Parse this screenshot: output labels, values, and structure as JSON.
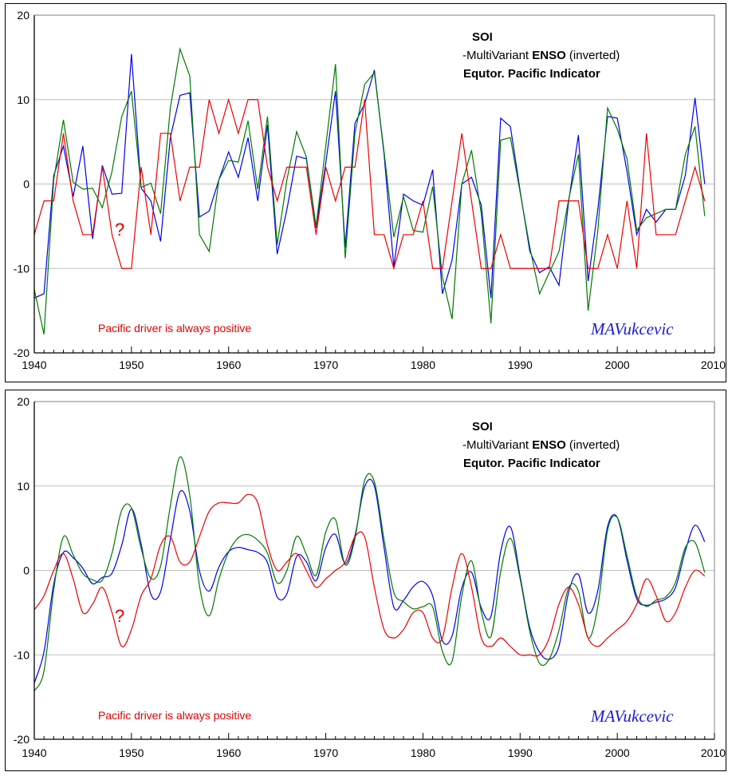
{
  "colors": {
    "soi": "#0000ee",
    "mei": "#007a00",
    "epi": "#ee0000",
    "grid": "#c0c0c0",
    "signature": "#1a1ad8"
  },
  "legend": {
    "soi": "SOI",
    "mei_prefix": "-MultiVariant ",
    "mei_bold": "ENSO",
    "mei_suffix": " (inverted)",
    "epi": "Equtor. Pacific Indicator"
  },
  "annotations": {
    "question_mark": "?",
    "note": "Pacific driver is always positive",
    "signature": "MAVukcevic"
  },
  "chart_data": [
    {
      "type": "line",
      "title": "",
      "variant": "raw",
      "xlabel": "",
      "ylabel": "",
      "xlim": [
        1940,
        2010
      ],
      "ylim": [
        -20,
        20
      ],
      "xticks": [
        1940,
        1950,
        1960,
        1970,
        1980,
        1990,
        2000,
        2010
      ],
      "yticks": [
        20,
        10,
        0,
        -10,
        -20
      ],
      "grid": true,
      "legend_position": "top-right"
    },
    {
      "type": "line",
      "title": "",
      "variant": "smoothed",
      "xlabel": "",
      "ylabel": "",
      "xlim": [
        1940,
        2010
      ],
      "ylim": [
        -20,
        20
      ],
      "xticks": [
        1940,
        1950,
        1960,
        1970,
        1980,
        1990,
        2000,
        2010
      ],
      "yticks": [
        20,
        10,
        0,
        -10,
        -20
      ],
      "grid": true,
      "legend_position": "top-right"
    }
  ],
  "series_data": {
    "x_start": 1940,
    "series": [
      {
        "name": "SOI",
        "key": "soi",
        "values": [
          -13.5,
          -13,
          1,
          4.5,
          -1.5,
          4.5,
          -6.5,
          2.2,
          -1.2,
          -1.1,
          15.4,
          -0.5,
          -2,
          -6.8,
          5.5,
          10.5,
          10.8,
          -3.9,
          -3.2,
          0.5,
          3.8,
          0.8,
          5.5,
          -2,
          7,
          -8.3,
          -3,
          3.3,
          3,
          -5.2,
          2.5,
          11,
          -7.5,
          7.2,
          9.5,
          13.5,
          3.5,
          -9.8,
          -1.2,
          -2,
          -2.5,
          1.7,
          -13,
          -9,
          0,
          0.8,
          -2.5,
          -13.5,
          7.8,
          6.8,
          -0.8,
          -8,
          -10.5,
          -9.8,
          -12,
          -2,
          5.8,
          -11.5,
          -3,
          8,
          7.8,
          1.5,
          -6,
          -3,
          -4.5,
          -3,
          -3,
          1,
          10.2,
          0
        ]
      },
      {
        "name": "-MultiVariant ENSO (inverted)",
        "key": "mei",
        "values": [
          -12.5,
          -17.8,
          0.5,
          7.6,
          0.2,
          -0.6,
          -0.5,
          -2.8,
          1.5,
          8,
          11,
          -0.4,
          0.1,
          -3.5,
          9,
          16,
          12.8,
          -6,
          -8,
          0.5,
          2.8,
          2.6,
          7.5,
          -0.6,
          8,
          -7.2,
          0.5,
          6.2,
          3.2,
          -5,
          4.5,
          14.2,
          -8.8,
          6,
          11.8,
          13.2,
          3.8,
          -6.3,
          -1.5,
          -5.5,
          -5.7,
          -0.3,
          -11,
          -16,
          0,
          4,
          -3.5,
          -16.5,
          5.2,
          5.5,
          -1,
          -7.5,
          -13,
          -10.5,
          -8,
          -1.8,
          3.5,
          -15,
          -5.5,
          9,
          6.5,
          3,
          -5.5,
          -4,
          -3.5,
          -3,
          -3,
          3.5,
          6.8,
          -3.8
        ]
      },
      {
        "name": "Equtor. Pacific Indicator",
        "key": "epi",
        "values": [
          -6,
          -2,
          -2,
          6,
          -2,
          -6,
          -6,
          2,
          -6,
          -10,
          -10,
          2,
          -6,
          6,
          6,
          -2,
          2,
          2,
          10,
          6,
          10,
          6,
          10,
          10,
          2,
          -2,
          2,
          2,
          2,
          -6,
          2,
          -2,
          2,
          2,
          10,
          -6,
          -6,
          -10,
          -6,
          -6,
          -2,
          -10,
          -10,
          -2,
          6,
          -2,
          -10,
          -10,
          -6,
          -10,
          -10,
          -10,
          -10,
          -10,
          -2,
          -2,
          -2,
          -10,
          -10,
          -6,
          -10,
          -2,
          -10,
          6,
          -6,
          -6,
          -6,
          -2,
          2,
          -2
        ]
      }
    ]
  }
}
